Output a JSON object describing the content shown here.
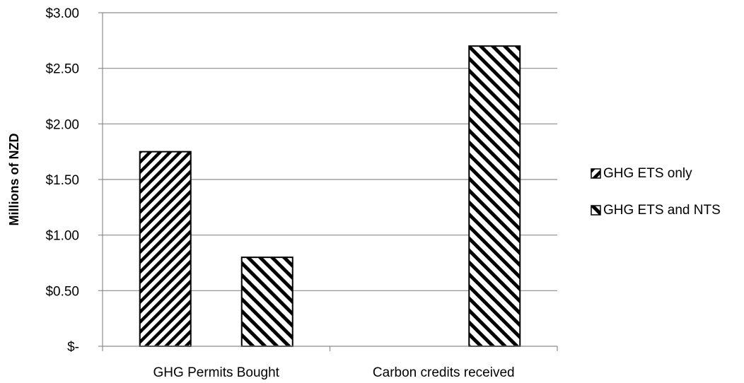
{
  "chart_data": {
    "type": "bar",
    "title": "",
    "xlabel": "",
    "ylabel": "Millions of NZD",
    "ylim": [
      0,
      3.0
    ],
    "yticks": [
      {
        "value": 0,
        "label": "$-"
      },
      {
        "value": 0.5,
        "label": "$0.50"
      },
      {
        "value": 1.0,
        "label": "$1.00"
      },
      {
        "value": 1.5,
        "label": "$1.50"
      },
      {
        "value": 2.0,
        "label": "$2.00"
      },
      {
        "value": 2.5,
        "label": "$2.50"
      },
      {
        "value": 3.0,
        "label": "$3.00"
      }
    ],
    "categories": [
      "GHG Permits Bought",
      "Carbon credits received"
    ],
    "series": [
      {
        "name": "GHG ETS only",
        "pattern": "diagonal-up",
        "values": [
          1.75,
          0
        ]
      },
      {
        "name": "GHG ETS and NTS",
        "pattern": "diagonal-down",
        "values": [
          0.8,
          2.7
        ]
      }
    ],
    "grid": true,
    "legend": "right"
  }
}
